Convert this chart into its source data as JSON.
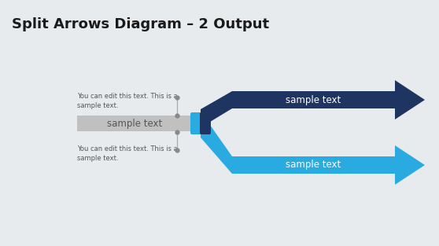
{
  "title": "Split Arrows Diagram – 2 Output",
  "title_fontsize": 13,
  "title_color": "#1a1a1a",
  "background_color": "#e8ebee",
  "dark_blue": "#1e3461",
  "light_blue": "#29aae1",
  "gray_bar_color": "#c0c0c0",
  "pill_cyan": "#29aae1",
  "pill_navy": "#1e3461",
  "text_color_white": "#ffffff",
  "text_color_dark": "#555555",
  "sample_text_top": "sample text",
  "sample_text_bottom": "sample text",
  "sample_text_left": "sample text",
  "annotation_text": "You can edit this text. This is a\nsample text.",
  "annotation_text2": "You can edit this text. This is a\nsample text.",
  "annotation_fontsize": 6.0,
  "label_fontsize": 8.5,
  "dot_color": "#888888",
  "line_color": "#aaaaaa"
}
